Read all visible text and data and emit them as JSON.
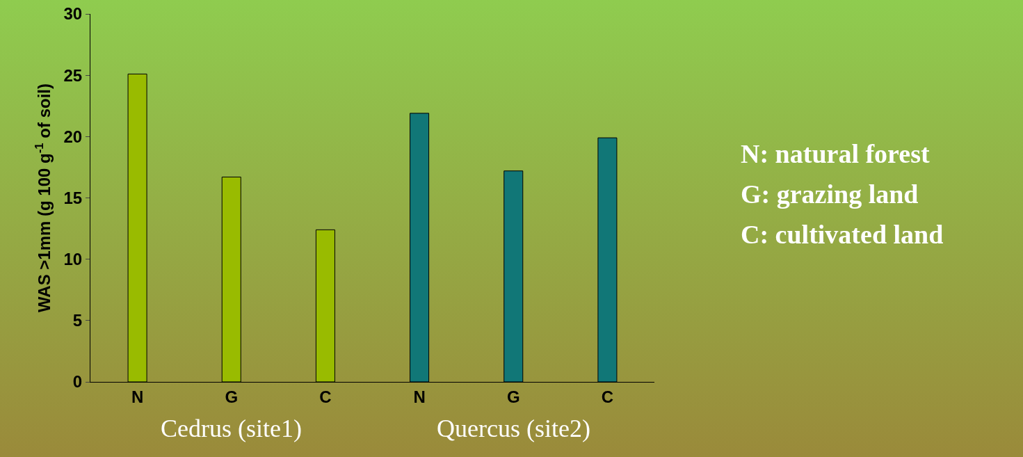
{
  "chart_data": {
    "type": "bar",
    "ylabel": "WAS >1mm (g 100 g$^{-1}$ of soil)",
    "categories": [
      "N",
      "G",
      "C",
      "N",
      "G",
      "C"
    ],
    "values": [
      25.1,
      16.7,
      12.4,
      21.9,
      17.2,
      19.9
    ],
    "colors": [
      "#99bb00",
      "#99bb00",
      "#99bb00",
      "#117777",
      "#117777",
      "#117777"
    ],
    "ylim": [
      0,
      30
    ],
    "yticks": [
      0,
      5,
      10,
      15,
      20,
      25,
      30
    ],
    "grid": false,
    "legend": false,
    "annotations": [
      "Cedrus (site1)",
      "Quercus (site2)",
      "N: natural forest",
      "G: grazing land",
      "C: cultivated land"
    ]
  }
}
